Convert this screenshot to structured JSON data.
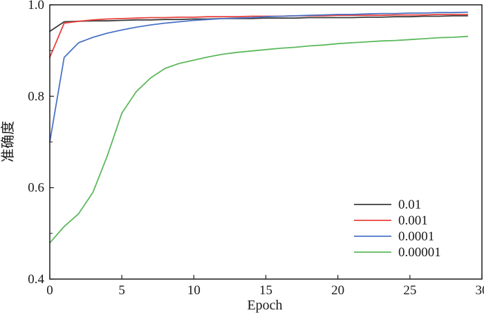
{
  "chart_data": {
    "type": "line",
    "xlabel": "Epoch",
    "ylabel": "准确度",
    "xlim": [
      0,
      30
    ],
    "ylim": [
      0.4,
      1.0
    ],
    "x_ticks": [
      0,
      5,
      10,
      15,
      20,
      25,
      30
    ],
    "y_ticks": [
      0.4,
      0.6,
      0.8,
      1.0
    ],
    "x_tick_labels": [
      "0",
      "5",
      "10",
      "15",
      "20",
      "25",
      "30"
    ],
    "y_tick_labels": [
      "0.4",
      "0.6",
      "0.8",
      "1.0"
    ],
    "grid": false,
    "legend_position": "bottom-right",
    "x": [
      0,
      1,
      2,
      3,
      4,
      5,
      6,
      7,
      8,
      9,
      10,
      11,
      12,
      13,
      14,
      15,
      16,
      17,
      18,
      19,
      20,
      21,
      22,
      23,
      24,
      25,
      26,
      27,
      28,
      29
    ],
    "series": [
      {
        "name": "0.01",
        "color": "#3a3a3a",
        "values": [
          0.942,
          0.963,
          0.964,
          0.965,
          0.965,
          0.966,
          0.967,
          0.967,
          0.968,
          0.968,
          0.969,
          0.969,
          0.97,
          0.97,
          0.97,
          0.971,
          0.971,
          0.971,
          0.972,
          0.972,
          0.972,
          0.972,
          0.973,
          0.973,
          0.974,
          0.974,
          0.975,
          0.975,
          0.976,
          0.976
        ]
      },
      {
        "name": "0.001",
        "color": "#e8413c",
        "values": [
          0.885,
          0.96,
          0.964,
          0.967,
          0.969,
          0.97,
          0.971,
          0.972,
          0.972,
          0.973,
          0.973,
          0.974,
          0.974,
          0.974,
          0.975,
          0.975,
          0.975,
          0.976,
          0.976,
          0.976,
          0.977,
          0.977,
          0.977,
          0.977,
          0.978,
          0.978,
          0.978,
          0.979,
          0.979,
          0.979
        ]
      },
      {
        "name": "0.0001",
        "color": "#4a72c4",
        "values": [
          0.7,
          0.885,
          0.917,
          0.929,
          0.938,
          0.945,
          0.951,
          0.956,
          0.96,
          0.963,
          0.966,
          0.968,
          0.97,
          0.971,
          0.972,
          0.974,
          0.975,
          0.976,
          0.977,
          0.978,
          0.979,
          0.979,
          0.98,
          0.981,
          0.981,
          0.982,
          0.982,
          0.983,
          0.983,
          0.984
        ]
      },
      {
        "name": "0.00001",
        "color": "#5cb85c",
        "values": [
          0.479,
          0.515,
          0.543,
          0.59,
          0.67,
          0.763,
          0.81,
          0.84,
          0.861,
          0.872,
          0.879,
          0.886,
          0.892,
          0.896,
          0.899,
          0.902,
          0.905,
          0.907,
          0.91,
          0.912,
          0.915,
          0.917,
          0.919,
          0.921,
          0.922,
          0.924,
          0.926,
          0.928,
          0.929,
          0.931
        ]
      }
    ]
  }
}
